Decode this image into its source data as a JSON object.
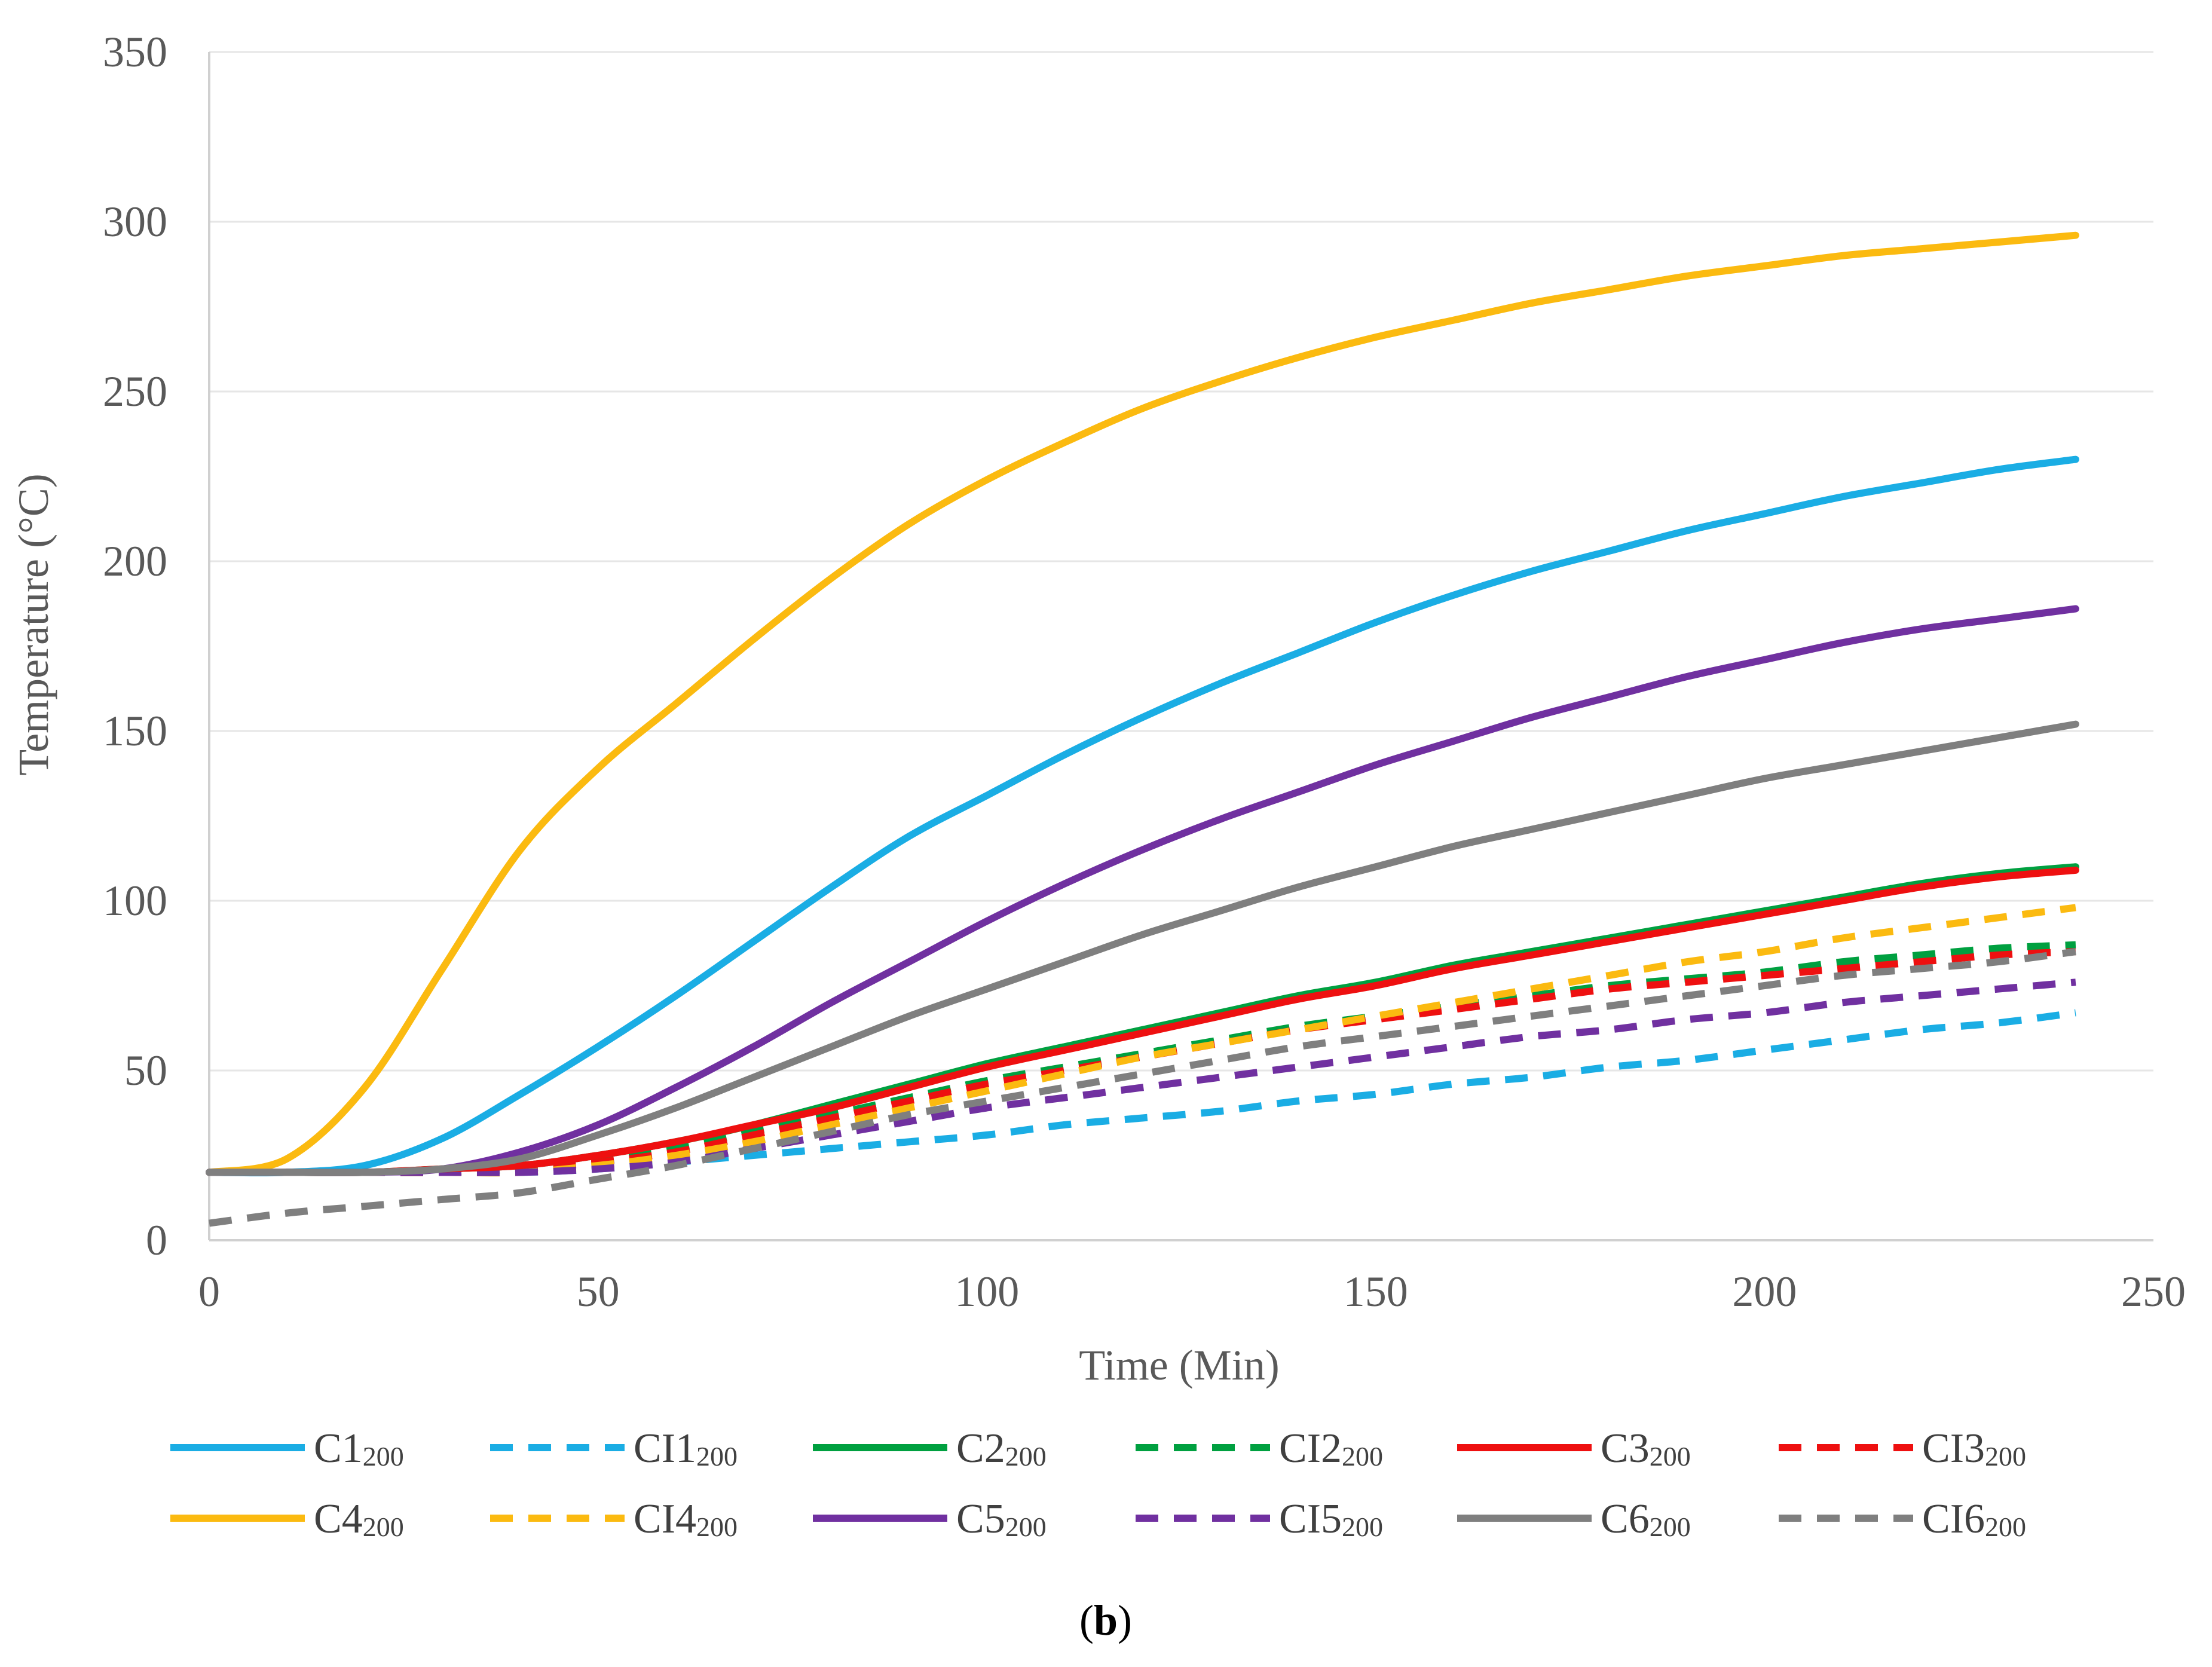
{
  "chart_data": {
    "type": "line",
    "title": "",
    "caption_open": "(",
    "caption_letter": "b",
    "caption_close": ")",
    "xlabel": "Time (Min)",
    "ylabel": "Temperature (°C)",
    "xlim": [
      0,
      250
    ],
    "ylim": [
      0,
      350
    ],
    "xticks": [
      0,
      50,
      100,
      150,
      200,
      250
    ],
    "yticks": [
      0,
      50,
      100,
      150,
      200,
      250,
      300,
      350
    ],
    "grid": true,
    "legend_position": "bottom",
    "x": [
      0,
      10,
      20,
      30,
      40,
      50,
      60,
      70,
      80,
      90,
      100,
      110,
      120,
      130,
      140,
      150,
      160,
      170,
      180,
      190,
      200,
      210,
      220,
      230,
      240
    ],
    "series": [
      {
        "name": "C1",
        "sub": "200",
        "color": "#1AADE4",
        "dash": "solid",
        "values": [
          20,
          20,
          22,
          30,
          43,
          57,
          72,
          88,
          104,
          119,
          131,
          143,
          154,
          164,
          173,
          182,
          190,
          197,
          203,
          209,
          214,
          219,
          223,
          227,
          230
        ]
      },
      {
        "name": "CI1",
        "sub": "200",
        "color": "#1AADE4",
        "dash": "dashed",
        "values": [
          20,
          20,
          20,
          20,
          20,
          21,
          23,
          25,
          27,
          29,
          31,
          34,
          36,
          38,
          41,
          43,
          46,
          48,
          51,
          53,
          56,
          59,
          62,
          64,
          67
        ]
      },
      {
        "name": "C2",
        "sub": "200",
        "color": "#00A040",
        "dash": "solid",
        "values": [
          20,
          20,
          20,
          21,
          22,
          25,
          29,
          34,
          40,
          46,
          52,
          57,
          62,
          67,
          72,
          76,
          81,
          85,
          89,
          93,
          97,
          101,
          105,
          108,
          110
        ]
      },
      {
        "name": "CI2",
        "sub": "200",
        "color": "#00A040",
        "dash": "dashed",
        "values": [
          20,
          20,
          20,
          20,
          21,
          23,
          27,
          32,
          37,
          42,
          47,
          51,
          55,
          59,
          63,
          66,
          69,
          72,
          75,
          77,
          79,
          82,
          84,
          86,
          87
        ]
      },
      {
        "name": "C3",
        "sub": "200",
        "color": "#EE1010",
        "dash": "solid",
        "values": [
          20,
          20,
          20,
          21,
          22,
          25,
          29,
          34,
          39,
          45,
          51,
          56,
          61,
          66,
          71,
          75,
          80,
          84,
          88,
          92,
          96,
          100,
          104,
          107,
          109
        ]
      },
      {
        "name": "CI3",
        "sub": "200",
        "color": "#EE1010",
        "dash": "dashed",
        "values": [
          20,
          20,
          20,
          20,
          21,
          23,
          26,
          31,
          36,
          41,
          46,
          50,
          54,
          58,
          62,
          65,
          68,
          71,
          74,
          76,
          78,
          80,
          82,
          84,
          85
        ]
      },
      {
        "name": "C4",
        "sub": "200",
        "color": "#FBBA10",
        "dash": "solid",
        "values": [
          20,
          24,
          45,
          80,
          115,
          139,
          158,
          177,
          195,
          211,
          224,
          235,
          245,
          253,
          260,
          266,
          271,
          276,
          280,
          284,
          287,
          290,
          292,
          294,
          296
        ]
      },
      {
        "name": "CI4",
        "sub": "200",
        "color": "#FBBA10",
        "dash": "dashed",
        "values": [
          20,
          20,
          20,
          20,
          20,
          22,
          25,
          29,
          34,
          39,
          44,
          49,
          54,
          58,
          62,
          66,
          70,
          74,
          78,
          82,
          85,
          89,
          92,
          95,
          98
        ]
      },
      {
        "name": "C5",
        "sub": "200",
        "color": "#7030A0",
        "dash": "solid",
        "values": [
          20,
          20,
          20,
          21,
          26,
          34,
          45,
          57,
          70,
          82,
          94,
          105,
          115,
          124,
          132,
          140,
          147,
          154,
          160,
          166,
          171,
          176,
          180,
          183,
          186
        ]
      },
      {
        "name": "CI5",
        "sub": "200",
        "color": "#7030A0",
        "dash": "dashed",
        "values": [
          20,
          20,
          20,
          20,
          20,
          21,
          23,
          27,
          31,
          35,
          39,
          42,
          45,
          48,
          51,
          54,
          57,
          60,
          62,
          65,
          67,
          70,
          72,
          74,
          76
        ]
      },
      {
        "name": "C6",
        "sub": "200",
        "color": "#7F7F7F",
        "dash": "solid",
        "values": [
          20,
          20,
          20,
          21,
          24,
          31,
          39,
          48,
          57,
          66,
          74,
          82,
          90,
          97,
          104,
          110,
          116,
          121,
          126,
          131,
          136,
          140,
          144,
          148,
          152
        ]
      },
      {
        "name": "CI6",
        "sub": "200",
        "color": "#7F7F7F",
        "dash": "dashed",
        "values": [
          5,
          8,
          10,
          12,
          14,
          18,
          22,
          27,
          32,
          37,
          41,
          45,
          49,
          53,
          57,
          60,
          63,
          66,
          69,
          72,
          75,
          78,
          80,
          82,
          85
        ]
      }
    ]
  }
}
